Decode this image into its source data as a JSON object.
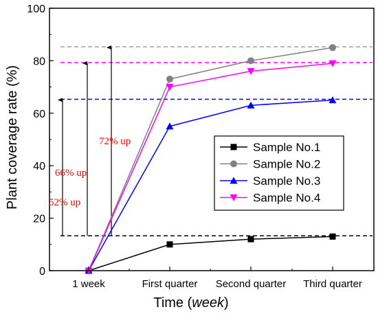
{
  "chart_data": {
    "type": "line",
    "categories": [
      "1 week",
      "First quarter",
      "Second quarter",
      "Third quarter"
    ],
    "xlabel": "Time",
    "xlabel_unit": "week",
    "ylabel": "Plant coverage rate (%)",
    "ylim": [
      0,
      100
    ],
    "yticks": [
      "0",
      "20",
      "40",
      "60",
      "80",
      "100"
    ],
    "legend_position": "center-right",
    "grid": false,
    "series": [
      {
        "name": "Sample No.1",
        "values": [
          0,
          10,
          12,
          13
        ],
        "color": "#000000",
        "marker": "square"
      },
      {
        "name": "Sample No.2",
        "values": [
          0,
          73,
          80,
          85
        ],
        "color": "#808080",
        "marker": "circle"
      },
      {
        "name": "Sample No.3",
        "values": [
          0,
          55,
          63,
          65
        ],
        "color": "#0000ff",
        "marker": "triangle-up"
      },
      {
        "name": "Sample No.4",
        "values": [
          0,
          70,
          76,
          79
        ],
        "color": "#ff00ff",
        "marker": "triangle-down"
      }
    ],
    "reference_lines": [
      {
        "value": 13.3,
        "color": "#000000"
      },
      {
        "value": 65.3,
        "color": "#0000ff"
      },
      {
        "value": 79.3,
        "color": "#ff00ff"
      },
      {
        "value": 85.3,
        "color": "#a0a0a0"
      }
    ],
    "annotations": [
      {
        "text": "52% up",
        "from": 13.3,
        "to": 65.3,
        "color": "#ff0000"
      },
      {
        "text": "66% up",
        "from": 13.3,
        "to": 79.3,
        "color": "#ff0000"
      },
      {
        "text": "72% up",
        "from": 13.3,
        "to": 85.3,
        "color": "#ff0000"
      }
    ]
  }
}
